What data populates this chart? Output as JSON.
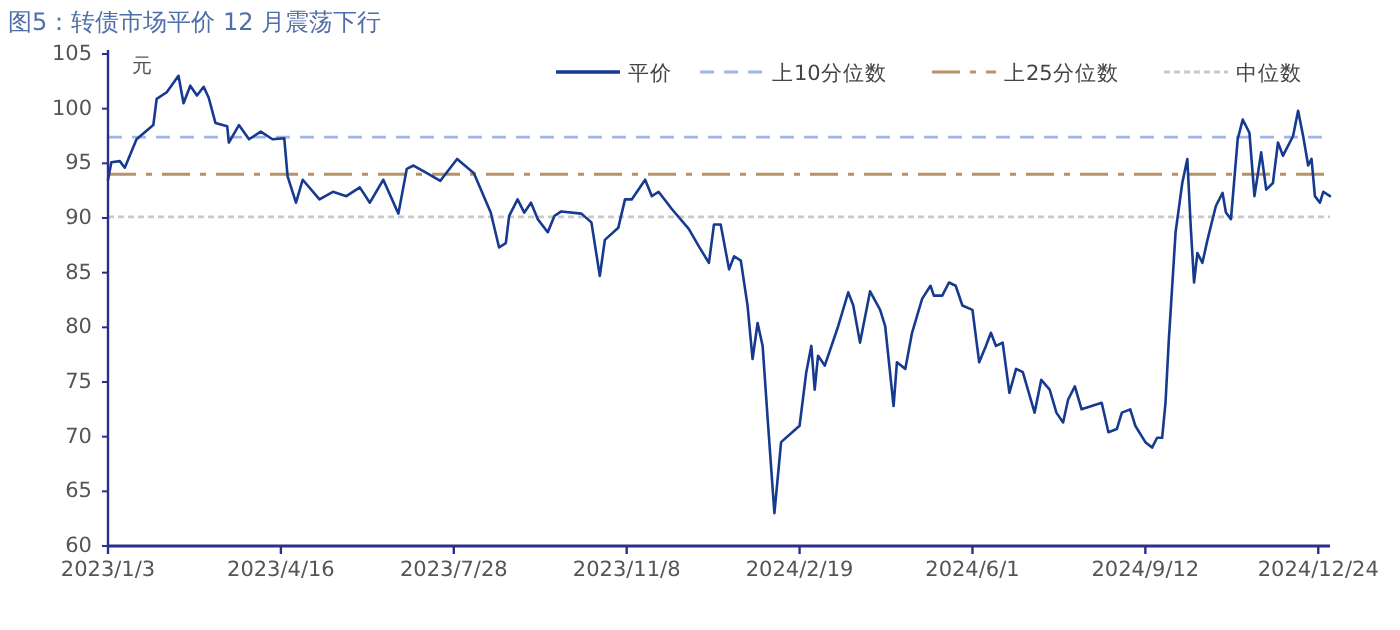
{
  "chart_data": {
    "type": "line",
    "title": "图5：转债市场平价 12 月震荡下行",
    "ylabel": "元",
    "xlim": [
      "2023-01-03",
      "2024-12-31"
    ],
    "xticks": [
      {
        "value": "2023-01-03",
        "label": "2023/1/3"
      },
      {
        "value": "2023-04-16",
        "label": "2023/4/16"
      },
      {
        "value": "2023-07-28",
        "label": "2023/7/28"
      },
      {
        "value": "2023-11-08",
        "label": "2023/11/8"
      },
      {
        "value": "2024-02-19",
        "label": "2024/2/19"
      },
      {
        "value": "2024-06-01",
        "label": "2024/6/1"
      },
      {
        "value": "2024-09-12",
        "label": "2024/9/12"
      },
      {
        "value": "2024-12-24",
        "label": "2024/12/24"
      }
    ],
    "ylim": [
      60,
      105
    ],
    "yticks": [
      60,
      65,
      70,
      75,
      80,
      85,
      90,
      95,
      100,
      105
    ],
    "grid": false,
    "legend": "top right",
    "line_style": "solid",
    "marker": "none",
    "series": [
      {
        "name": "平价",
        "color": "#163a8f",
        "x": [
          "2023-01-03",
          "2023-01-05",
          "2023-01-10",
          "2023-01-13",
          "2023-01-20",
          "2023-01-30",
          "2023-02-01",
          "2023-02-07",
          "2023-02-14",
          "2023-02-17",
          "2023-02-21",
          "2023-02-25",
          "2023-03-01",
          "2023-03-04",
          "2023-03-08",
          "2023-03-15",
          "2023-03-16",
          "2023-03-22",
          "2023-03-28",
          "2023-04-04",
          "2023-04-11",
          "2023-04-18",
          "2023-04-20",
          "2023-04-25",
          "2023-04-29",
          "2023-05-09",
          "2023-05-17",
          "2023-05-25",
          "2023-06-02",
          "2023-06-08",
          "2023-06-16",
          "2023-06-25",
          "2023-06-30",
          "2023-07-04",
          "2023-07-12",
          "2023-07-20",
          "2023-07-30",
          "2023-08-09",
          "2023-08-19",
          "2023-08-24",
          "2023-08-28",
          "2023-08-30",
          "2023-09-04",
          "2023-09-08",
          "2023-09-12",
          "2023-09-16",
          "2023-09-22",
          "2023-09-26",
          "2023-09-30",
          "2023-10-12",
          "2023-10-18",
          "2023-10-23",
          "2023-10-26",
          "2023-11-03",
          "2023-11-07",
          "2023-11-11",
          "2023-11-19",
          "2023-11-23",
          "2023-11-27",
          "2023-12-05",
          "2023-12-15",
          "2023-12-21",
          "2023-12-27",
          "2023-12-30",
          "2024-01-03",
          "2024-01-08",
          "2024-01-11",
          "2024-01-15",
          "2024-01-19",
          "2024-01-22",
          "2024-01-25",
          "2024-01-28",
          "2024-01-31",
          "2024-02-04",
          "2024-02-08",
          "2024-02-19",
          "2024-02-23",
          "2024-02-26",
          "2024-02-28",
          "2024-03-01",
          "2024-03-05",
          "2024-03-13",
          "2024-03-19",
          "2024-03-22",
          "2024-03-26",
          "2024-04-01",
          "2024-04-07",
          "2024-04-10",
          "2024-04-15",
          "2024-04-17",
          "2024-04-22",
          "2024-04-26",
          "2024-05-02",
          "2024-05-07",
          "2024-05-09",
          "2024-05-14",
          "2024-05-18",
          "2024-05-22",
          "2024-05-26",
          "2024-06-01",
          "2024-06-05",
          "2024-06-09",
          "2024-06-12",
          "2024-06-15",
          "2024-06-19",
          "2024-06-23",
          "2024-06-27",
          "2024-07-01",
          "2024-07-08",
          "2024-07-12",
          "2024-07-17",
          "2024-07-21",
          "2024-07-25",
          "2024-07-28",
          "2024-08-01",
          "2024-08-05",
          "2024-08-11",
          "2024-08-17",
          "2024-08-21",
          "2024-08-26",
          "2024-08-29",
          "2024-09-03",
          "2024-09-06",
          "2024-09-12",
          "2024-09-16",
          "2024-09-19",
          "2024-09-22",
          "2024-09-24",
          "2024-09-26",
          "2024-09-30",
          "2024-10-04",
          "2024-10-07",
          "2024-10-09",
          "2024-10-11",
          "2024-10-13",
          "2024-10-16",
          "2024-10-19",
          "2024-10-24",
          "2024-10-28",
          "2024-10-30",
          "2024-11-02",
          "2024-11-06",
          "2024-11-09",
          "2024-11-13",
          "2024-11-16",
          "2024-11-20",
          "2024-11-23",
          "2024-11-27",
          "2024-11-30",
          "2024-12-03",
          "2024-12-09",
          "2024-12-12",
          "2024-12-15",
          "2024-12-18",
          "2024-12-20",
          "2024-12-22",
          "2024-12-25",
          "2024-12-27",
          "2024-12-31"
        ],
        "values": [
          93.5,
          95.1,
          95.2,
          94.6,
          97.2,
          98.5,
          100.9,
          101.5,
          103.0,
          100.5,
          102.1,
          101.2,
          102.0,
          101.0,
          98.7,
          98.4,
          96.9,
          98.5,
          97.2,
          97.9,
          97.2,
          97.3,
          93.8,
          91.4,
          93.5,
          91.7,
          92.4,
          92.0,
          92.8,
          91.4,
          93.5,
          90.4,
          94.5,
          94.8,
          94.1,
          93.4,
          95.4,
          94.1,
          90.5,
          87.3,
          87.7,
          90.2,
          91.7,
          90.5,
          91.4,
          89.9,
          88.7,
          90.2,
          90.6,
          90.4,
          89.6,
          84.7,
          88.0,
          89.1,
          91.7,
          91.7,
          93.5,
          92.0,
          92.4,
          90.8,
          89.0,
          87.4,
          85.9,
          89.4,
          89.4,
          85.3,
          86.5,
          86.1,
          82.0,
          77.1,
          80.4,
          78.3,
          71.6,
          63.0,
          69.5,
          71.0,
          75.9,
          78.3,
          74.3,
          77.4,
          76.5,
          80.1,
          83.2,
          82.0,
          78.6,
          83.3,
          81.6,
          80.1,
          72.8,
          76.8,
          76.2,
          79.5,
          82.6,
          83.8,
          82.9,
          82.9,
          84.1,
          83.8,
          82.0,
          81.6,
          76.8,
          78.3,
          79.5,
          78.3,
          78.6,
          74.0,
          76.2,
          75.9,
          72.2,
          75.2,
          74.3,
          72.2,
          71.3,
          73.4,
          74.6,
          72.5,
          72.8,
          73.1,
          70.4,
          70.7,
          72.2,
          72.5,
          71.0,
          69.5,
          69.0,
          69.9,
          69.9,
          73.1,
          78.9,
          88.7,
          93.2,
          95.4,
          89.3,
          84.1,
          86.8,
          85.9,
          88.0,
          91.1,
          92.3,
          90.5,
          89.9,
          97.2,
          99.0,
          97.8,
          92.0,
          96.0,
          92.6,
          93.2,
          96.9,
          95.7,
          97.5,
          99.8,
          97.5,
          94.8,
          95.4,
          92.0,
          91.4,
          92.4,
          92.0
        ]
      }
    ],
    "ref_lines": [
      {
        "axis": "y",
        "value": 97.4,
        "label": "上10分位数",
        "color": "#9fb6e6",
        "line_style": "dashed"
      },
      {
        "axis": "y",
        "value": 94.0,
        "label": "上25分位数",
        "color": "#b89368",
        "line_style": "dashdot"
      },
      {
        "axis": "y",
        "value": 90.1,
        "label": "中位数",
        "color": "#c9c9c9",
        "line_style": "dotted"
      }
    ]
  }
}
